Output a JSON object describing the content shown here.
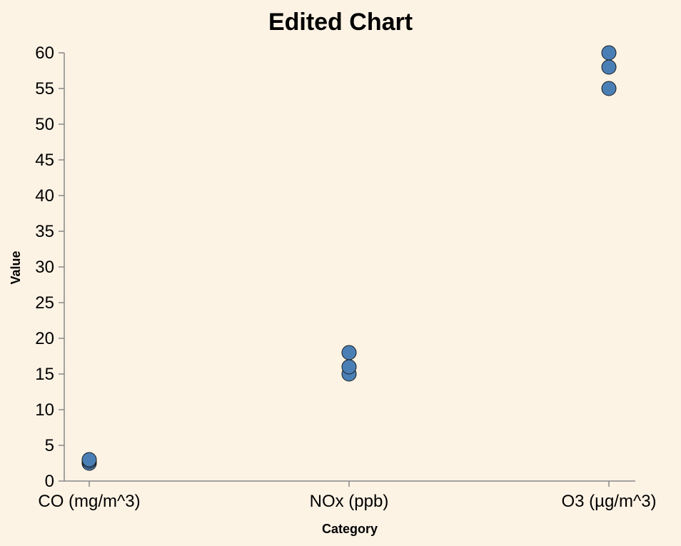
{
  "chart_data": {
    "type": "scatter",
    "title": "Edited Chart",
    "xlabel": "Category",
    "ylabel": "Value",
    "categories": [
      "CO (mg/m^3)",
      "NOx (ppb)",
      "O3 (µg/m^3)"
    ],
    "points": [
      {
        "category": "CO (mg/m^3)",
        "value": 2.5
      },
      {
        "category": "CO (mg/m^3)",
        "value": 2.8
      },
      {
        "category": "CO (mg/m^3)",
        "value": 3.0
      },
      {
        "category": "NOx (ppb)",
        "value": 15
      },
      {
        "category": "NOx (ppb)",
        "value": 16
      },
      {
        "category": "NOx (ppb)",
        "value": 18
      },
      {
        "category": "O3 (µg/m^3)",
        "value": 55
      },
      {
        "category": "O3 (µg/m^3)",
        "value": 58
      },
      {
        "category": "O3 (µg/m^3)",
        "value": 60
      }
    ],
    "ylim": [
      0,
      60
    ],
    "y_ticks": [
      0,
      5,
      10,
      15,
      20,
      25,
      30,
      35,
      40,
      45,
      50,
      55,
      60
    ],
    "grid": false,
    "legend": "none",
    "colors": {
      "background": "#fdf3e5",
      "point_fill": "#4a7fb5",
      "point_stroke": "#1a1a1a",
      "axis": "#888888",
      "text": "#000000"
    }
  }
}
